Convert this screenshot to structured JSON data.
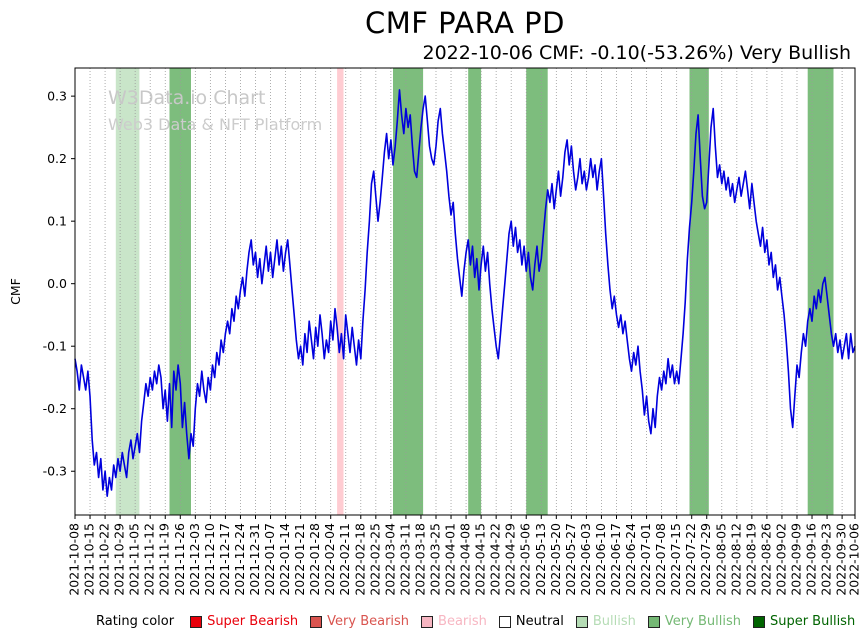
{
  "chart": {
    "title": "CMF PARA PD",
    "subtitle": "2022-10-06 CMF: -0.10(-53.26%) Very Bullish",
    "watermark_line1": "W3Data.io Chart",
    "watermark_line2": "Web3 Data & NFT Platform",
    "ylabel": "CMF"
  },
  "legend": {
    "label": "Rating color",
    "items": [
      {
        "key": "super-bearish",
        "label": "Super Bearish",
        "color": "#e8000b"
      },
      {
        "key": "very-bearish",
        "label": "Very Bearish",
        "color": "#d9544f"
      },
      {
        "key": "bearish",
        "label": "Bearish",
        "color": "#f7b6c2"
      },
      {
        "key": "neutral",
        "label": "Neutral",
        "color": "#ffffff",
        "text_color": "#000000"
      },
      {
        "key": "bullish",
        "label": "Bullish",
        "color": "#b5dcb5"
      },
      {
        "key": "very-bullish",
        "label": "Very Bullish",
        "color": "#74b874"
      },
      {
        "key": "super-bullish",
        "label": "Super Bullish",
        "color": "#006400"
      }
    ]
  },
  "chart_data": {
    "type": "line",
    "title": "CMF PARA PD",
    "xlabel": "",
    "ylabel": "CMF",
    "grid": "vertical-dotted",
    "line_color": "#0000dd",
    "x_range": [
      "2021-10-08",
      "2022-10-06"
    ],
    "ylim": [
      -0.37,
      0.345
    ],
    "y_ticks": [
      -0.3,
      -0.2,
      -0.1,
      0.0,
      0.1,
      0.2,
      0.3
    ],
    "x_tick_labels": [
      "2021-10-08",
      "2021-10-15",
      "2021-10-22",
      "2021-10-29",
      "2021-11-05",
      "2021-11-12",
      "2021-11-19",
      "2021-11-26",
      "2021-12-03",
      "2021-12-10",
      "2021-12-17",
      "2021-12-24",
      "2021-12-31",
      "2022-01-07",
      "2022-01-14",
      "2022-01-21",
      "2022-01-28",
      "2022-02-04",
      "2022-02-11",
      "2022-02-18",
      "2022-02-25",
      "2022-03-04",
      "2022-03-11",
      "2022-03-18",
      "2022-03-25",
      "2022-04-01",
      "2022-04-08",
      "2022-04-15",
      "2022-04-22",
      "2022-04-29",
      "2022-05-06",
      "2022-05-13",
      "2022-05-20",
      "2022-05-27",
      "2022-06-03",
      "2022-06-10",
      "2022-06-17",
      "2022-06-24",
      "2022-07-01",
      "2022-07-08",
      "2022-07-15",
      "2022-07-22",
      "2022-07-29",
      "2022-08-05",
      "2022-08-12",
      "2022-08-19",
      "2022-08-26",
      "2022-09-02",
      "2022-09-09",
      "2022-09-16",
      "2022-09-23",
      "2022-09-30",
      "2022-10-06"
    ],
    "band_colors": {
      "bearish": "#ffccd2",
      "bullish": "#c9e5c9",
      "very_bullish": "#7dbd7d",
      "super_bullish": "#157a15"
    },
    "bands": [
      {
        "start": "2021-10-27",
        "end": "2021-11-07",
        "rating": "bullish"
      },
      {
        "start": "2021-11-21",
        "end": "2021-12-01",
        "rating": "very_bullish"
      },
      {
        "start": "2022-02-07",
        "end": "2022-02-10",
        "rating": "bearish"
      },
      {
        "start": "2022-03-05",
        "end": "2022-03-19",
        "rating": "very_bullish"
      },
      {
        "start": "2022-04-09",
        "end": "2022-04-15",
        "rating": "very_bullish"
      },
      {
        "start": "2022-05-06",
        "end": "2022-05-16",
        "rating": "very_bullish"
      },
      {
        "start": "2022-07-21",
        "end": "2022-07-30",
        "rating": "very_bullish"
      },
      {
        "start": "2022-09-14",
        "end": "2022-09-26",
        "rating": "very_bullish"
      }
    ],
    "series": [
      {
        "name": "CMF",
        "color": "#0000dd",
        "start_date": "2021-10-08",
        "interval_days": 1,
        "last_value": -0.1,
        "last_change_pct": -53.26,
        "last_rating": "Very Bullish",
        "values": [
          -0.12,
          -0.14,
          -0.17,
          -0.13,
          -0.15,
          -0.17,
          -0.14,
          -0.18,
          -0.25,
          -0.29,
          -0.27,
          -0.31,
          -0.28,
          -0.33,
          -0.3,
          -0.34,
          -0.31,
          -0.33,
          -0.29,
          -0.31,
          -0.28,
          -0.3,
          -0.27,
          -0.29,
          -0.31,
          -0.27,
          -0.25,
          -0.28,
          -0.26,
          -0.24,
          -0.27,
          -0.22,
          -0.19,
          -0.16,
          -0.18,
          -0.15,
          -0.17,
          -0.14,
          -0.16,
          -0.13,
          -0.15,
          -0.2,
          -0.17,
          -0.22,
          -0.16,
          -0.23,
          -0.14,
          -0.17,
          -0.13,
          -0.16,
          -0.23,
          -0.19,
          -0.24,
          -0.28,
          -0.24,
          -0.26,
          -0.2,
          -0.16,
          -0.18,
          -0.14,
          -0.17,
          -0.19,
          -0.15,
          -0.17,
          -0.13,
          -0.15,
          -0.11,
          -0.13,
          -0.09,
          -0.11,
          -0.08,
          -0.06,
          -0.08,
          -0.04,
          -0.06,
          -0.02,
          -0.04,
          -0.01,
          0.01,
          -0.02,
          0.02,
          0.05,
          0.07,
          0.03,
          0.05,
          0.01,
          0.04,
          0.0,
          0.03,
          0.06,
          0.02,
          0.05,
          0.01,
          0.04,
          0.07,
          0.03,
          0.06,
          0.02,
          0.05,
          0.07,
          0.03,
          -0.01,
          -0.05,
          -0.09,
          -0.12,
          -0.1,
          -0.13,
          -0.08,
          -0.11,
          -0.06,
          -0.09,
          -0.12,
          -0.07,
          -0.1,
          -0.05,
          -0.08,
          -0.12,
          -0.09,
          -0.11,
          -0.06,
          -0.09,
          -0.04,
          -0.07,
          -0.11,
          -0.08,
          -0.12,
          -0.05,
          -0.08,
          -0.11,
          -0.07,
          -0.1,
          -0.13,
          -0.09,
          -0.12,
          -0.06,
          -0.01,
          0.05,
          0.1,
          0.16,
          0.18,
          0.14,
          0.1,
          0.13,
          0.17,
          0.21,
          0.24,
          0.2,
          0.23,
          0.19,
          0.22,
          0.26,
          0.31,
          0.27,
          0.24,
          0.28,
          0.25,
          0.27,
          0.22,
          0.18,
          0.17,
          0.21,
          0.25,
          0.28,
          0.3,
          0.26,
          0.22,
          0.2,
          0.19,
          0.22,
          0.26,
          0.28,
          0.24,
          0.21,
          0.18,
          0.14,
          0.11,
          0.13,
          0.08,
          0.04,
          0.01,
          -0.02,
          0.02,
          0.05,
          0.07,
          0.03,
          0.06,
          0.01,
          0.04,
          -0.01,
          0.03,
          0.06,
          0.02,
          0.05,
          0.0,
          -0.04,
          -0.07,
          -0.1,
          -0.12,
          -0.08,
          -0.04,
          0.0,
          0.04,
          0.08,
          0.1,
          0.06,
          0.09,
          0.05,
          0.07,
          0.03,
          0.06,
          0.02,
          0.05,
          0.01,
          -0.01,
          0.03,
          0.06,
          0.02,
          0.04,
          0.08,
          0.12,
          0.15,
          0.13,
          0.16,
          0.12,
          0.15,
          0.18,
          0.14,
          0.17,
          0.21,
          0.23,
          0.19,
          0.22,
          0.18,
          0.15,
          0.17,
          0.2,
          0.16,
          0.18,
          0.15,
          0.17,
          0.2,
          0.17,
          0.19,
          0.15,
          0.18,
          0.2,
          0.14,
          0.08,
          0.03,
          -0.01,
          -0.04,
          -0.02,
          -0.05,
          -0.07,
          -0.05,
          -0.08,
          -0.06,
          -0.09,
          -0.12,
          -0.14,
          -0.11,
          -0.13,
          -0.1,
          -0.14,
          -0.17,
          -0.21,
          -0.18,
          -0.22,
          -0.24,
          -0.2,
          -0.23,
          -0.18,
          -0.15,
          -0.17,
          -0.14,
          -0.16,
          -0.12,
          -0.15,
          -0.13,
          -0.16,
          -0.14,
          -0.16,
          -0.12,
          -0.08,
          -0.03,
          0.04,
          0.09,
          0.13,
          0.18,
          0.24,
          0.27,
          0.2,
          0.14,
          0.12,
          0.13,
          0.19,
          0.25,
          0.28,
          0.22,
          0.17,
          0.19,
          0.16,
          0.18,
          0.15,
          0.17,
          0.14,
          0.16,
          0.13,
          0.15,
          0.17,
          0.14,
          0.16,
          0.18,
          0.15,
          0.12,
          0.16,
          0.13,
          0.1,
          0.08,
          0.06,
          0.09,
          0.05,
          0.07,
          0.03,
          0.05,
          0.01,
          0.03,
          -0.01,
          0.01,
          -0.02,
          -0.05,
          -0.09,
          -0.14,
          -0.2,
          -0.23,
          -0.18,
          -0.13,
          -0.15,
          -0.11,
          -0.08,
          -0.1,
          -0.06,
          -0.04,
          -0.06,
          -0.02,
          -0.04,
          -0.01,
          -0.03,
          0.0,
          0.01,
          -0.02,
          -0.05,
          -0.08,
          -0.1,
          -0.08,
          -0.11,
          -0.09,
          -0.12,
          -0.1,
          -0.08,
          -0.12,
          -0.08,
          -0.11,
          -0.1
        ]
      }
    ]
  }
}
